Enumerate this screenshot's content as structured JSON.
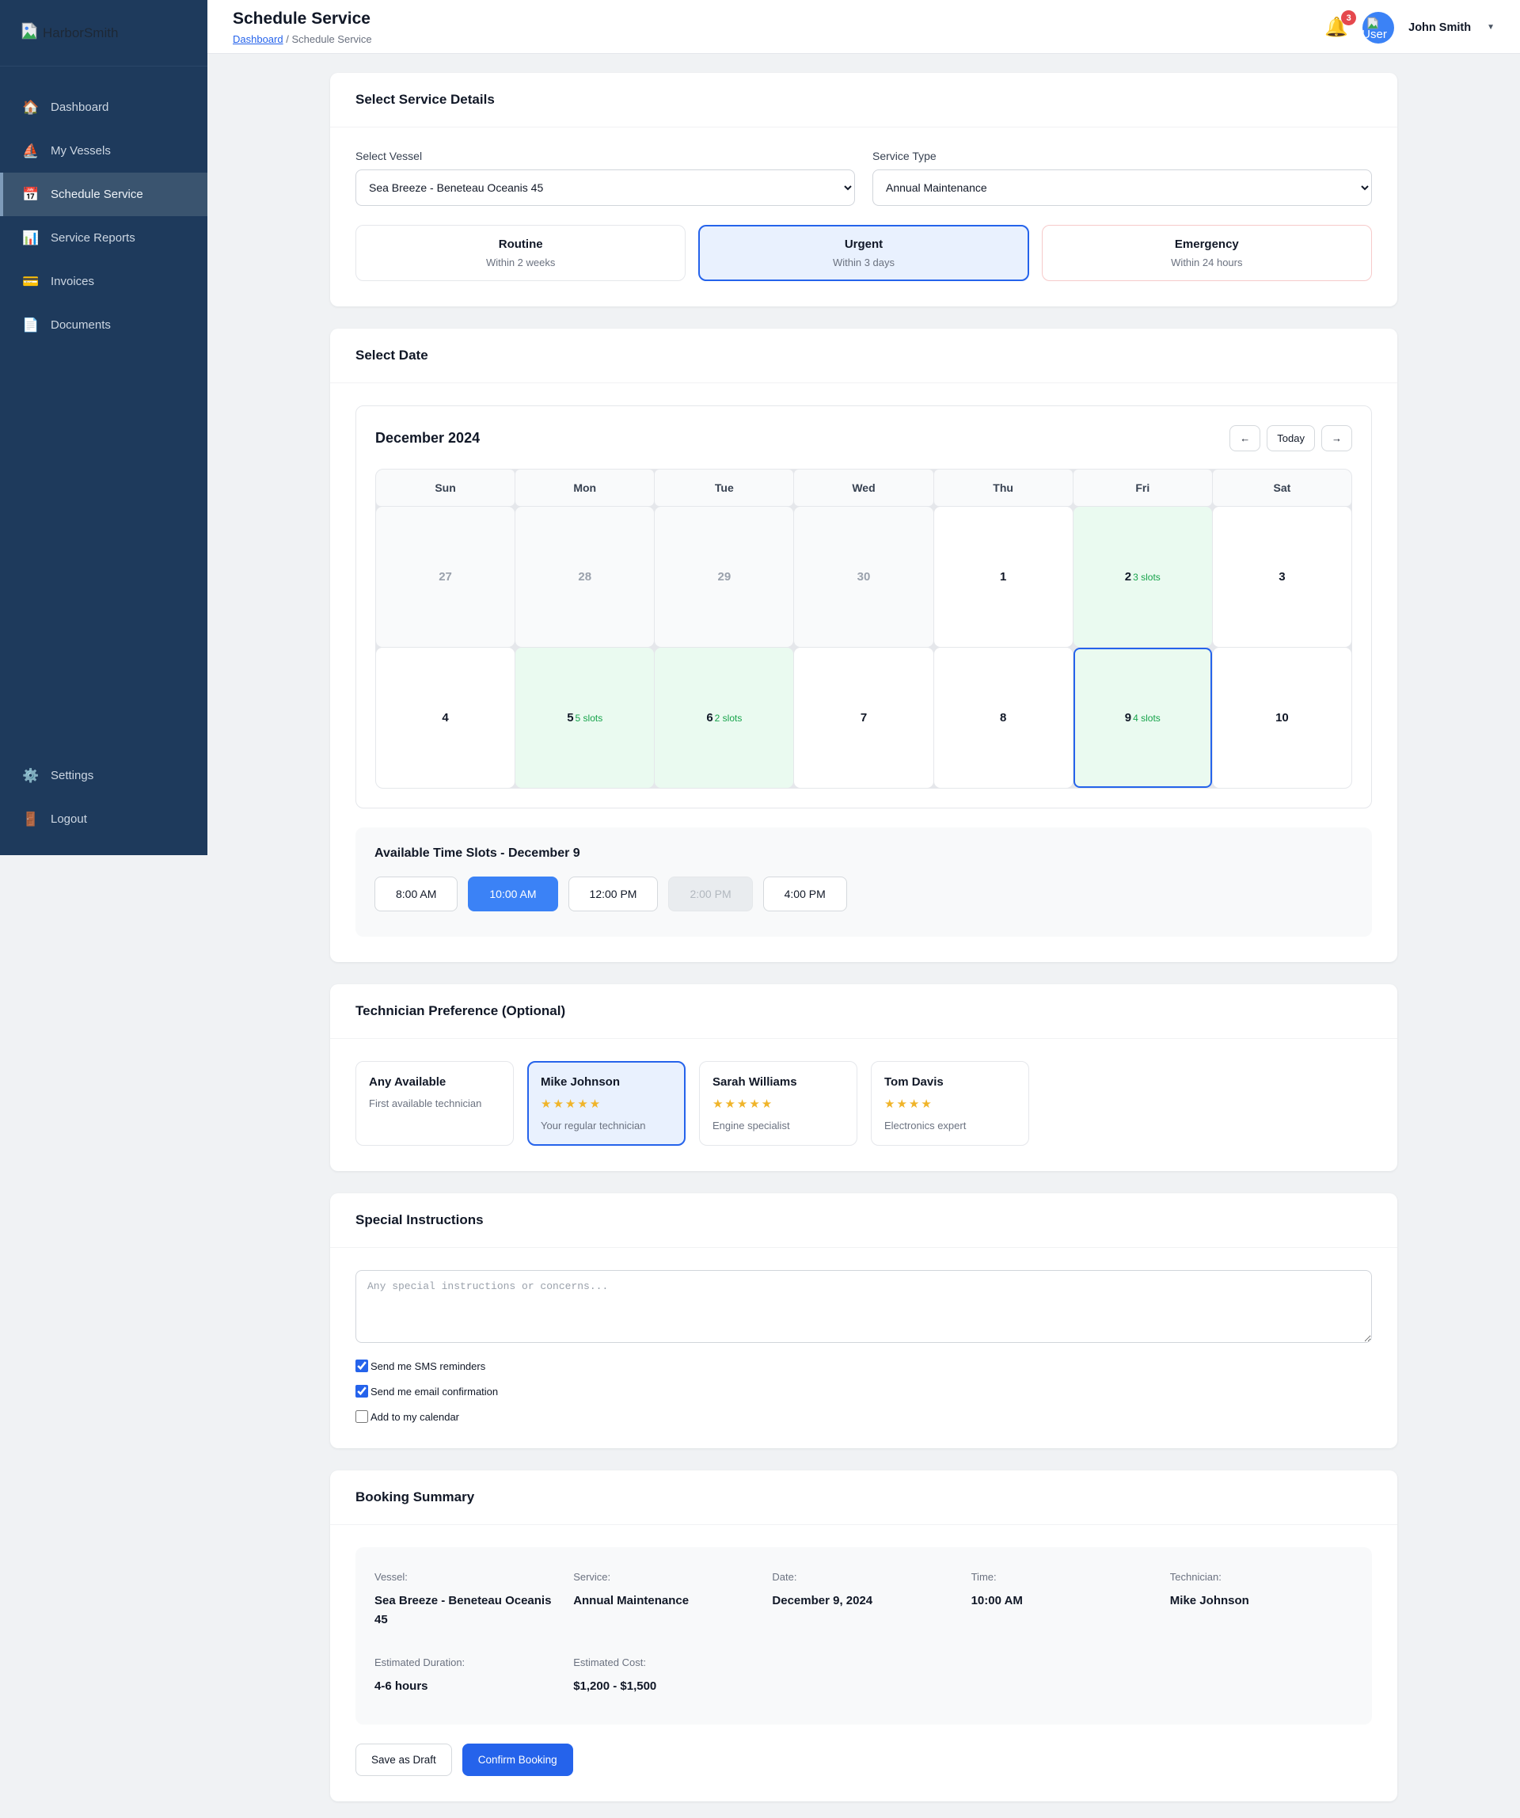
{
  "colors": {
    "sidebar_bg": "#1e3a5c",
    "accent_blue": "#2563eb",
    "slot_selected_blue": "#3b82f6",
    "available_green_bg": "#eafaf0",
    "slots_text_green": "#16a34a",
    "emergency_border": "#f6caca",
    "badge_red": "#e5484d"
  },
  "sidebar": {
    "logo_alt": "HarborSmith",
    "nav": [
      {
        "label": "Dashboard",
        "icon": "home-icon",
        "glyph": "🏠",
        "active": false
      },
      {
        "label": "My Vessels",
        "icon": "sailboat-icon",
        "glyph": "⛵",
        "active": false
      },
      {
        "label": "Schedule Service",
        "icon": "calendar-icon",
        "glyph": "📅",
        "active": true
      },
      {
        "label": "Service Reports",
        "icon": "bar-chart-icon",
        "glyph": "📊",
        "active": false
      },
      {
        "label": "Invoices",
        "icon": "credit-card-icon",
        "glyph": "💳",
        "active": false
      },
      {
        "label": "Documents",
        "icon": "document-icon",
        "glyph": "📄",
        "active": false
      }
    ],
    "footer_nav": [
      {
        "label": "Settings",
        "icon": "gear-icon",
        "glyph": "⚙️",
        "active": false
      },
      {
        "label": "Logout",
        "icon": "door-icon",
        "glyph": "🚪",
        "active": false
      }
    ]
  },
  "header": {
    "title": "Schedule Service",
    "breadcrumb": {
      "link": "Dashboard",
      "separator": "/",
      "current": "Schedule Service"
    },
    "notifications_count": "3",
    "bell_icon": "🔔",
    "avatar_alt": "User",
    "user_name": "John Smith",
    "caret": "▼"
  },
  "service_details": {
    "section_title": "Select Service Details",
    "vessel_label": "Select Vessel",
    "vessel_value": "Sea Breeze - Beneteau Oceanis 45",
    "service_type_label": "Service Type",
    "service_type_value": "Annual Maintenance",
    "priorities": [
      {
        "title": "Routine",
        "subtitle": "Within 2 weeks",
        "state": "default"
      },
      {
        "title": "Urgent",
        "subtitle": "Within 3 days",
        "state": "selected"
      },
      {
        "title": "Emergency",
        "subtitle": "Within 24 hours",
        "state": "emergency"
      }
    ]
  },
  "date_section": {
    "section_title": "Select Date",
    "calendar": {
      "month_title": "December 2024",
      "prev_label": "←",
      "today_label": "Today",
      "next_label": "→",
      "weekdays": [
        "Sun",
        "Mon",
        "Tue",
        "Wed",
        "Thu",
        "Fri",
        "Sat"
      ],
      "days": [
        {
          "day": "27",
          "type": "other"
        },
        {
          "day": "28",
          "type": "other"
        },
        {
          "day": "29",
          "type": "other"
        },
        {
          "day": "30",
          "type": "other"
        },
        {
          "day": "1",
          "type": "default"
        },
        {
          "day": "2",
          "type": "available",
          "slots": "3 slots"
        },
        {
          "day": "3",
          "type": "default"
        },
        {
          "day": "4",
          "type": "default"
        },
        {
          "day": "5",
          "type": "available",
          "slots": "5 slots"
        },
        {
          "day": "6",
          "type": "available",
          "slots": "2 slots"
        },
        {
          "day": "7",
          "type": "default"
        },
        {
          "day": "8",
          "type": "default"
        },
        {
          "day": "9",
          "type": "selected",
          "slots": "4 slots"
        },
        {
          "day": "10",
          "type": "default"
        }
      ]
    },
    "time_slots": {
      "title": "Available Time Slots - December 9",
      "slots": [
        {
          "label": "8:00 AM",
          "state": "default"
        },
        {
          "label": "10:00 AM",
          "state": "selected"
        },
        {
          "label": "12:00 PM",
          "state": "default"
        },
        {
          "label": "2:00 PM",
          "state": "disabled"
        },
        {
          "label": "4:00 PM",
          "state": "default"
        }
      ]
    }
  },
  "technician_section": {
    "section_title": "Technician Preference (Optional)",
    "technicians": [
      {
        "name": "Any Available",
        "desc": "First available technician",
        "stars": 0,
        "selected": false
      },
      {
        "name": "Mike Johnson",
        "desc": "Your regular technician",
        "stars": 5,
        "selected": true
      },
      {
        "name": "Sarah Williams",
        "desc": "Engine specialist",
        "stars": 5,
        "selected": false
      },
      {
        "name": "Tom Davis",
        "desc": "Electronics expert",
        "stars": 4,
        "selected": false
      }
    ]
  },
  "instructions_section": {
    "section_title": "Special Instructions",
    "textarea_placeholder": "Any special instructions or concerns...",
    "checkboxes": [
      {
        "label": "Send me SMS reminders",
        "checked": true
      },
      {
        "label": "Send me email confirmation",
        "checked": true
      },
      {
        "label": "Add to my calendar",
        "checked": false
      }
    ]
  },
  "summary_section": {
    "section_title": "Booking Summary",
    "fields": [
      {
        "label": "Vessel:",
        "value": "Sea Breeze - Beneteau Oceanis 45"
      },
      {
        "label": "Service:",
        "value": "Annual Maintenance"
      },
      {
        "label": "Date:",
        "value": "December 9, 2024"
      },
      {
        "label": "Time:",
        "value": "10:00 AM"
      },
      {
        "label": "Technician:",
        "value": "Mike Johnson"
      },
      {
        "label": "Estimated Duration:",
        "value": "4-6 hours"
      },
      {
        "label": "Estimated Cost:",
        "value": "$1,200 - $1,500"
      }
    ],
    "save_draft_label": "Save as Draft",
    "confirm_label": "Confirm Booking"
  }
}
